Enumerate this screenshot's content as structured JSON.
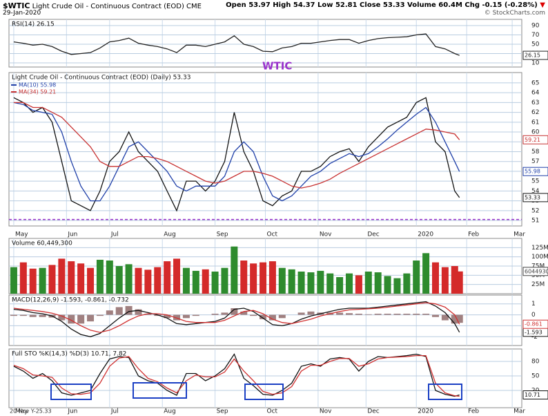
{
  "header": {
    "symbol": "$WTIC",
    "name": "Light Crude Oil - Continuous Contract (EOD)",
    "exchange": "CME",
    "date": "29-Jan-2020",
    "quote": "Open 53.97  High 54.37  Low 52.81  Close 53.33  Volume 60.4M  Chg -0.15 (-0.28%)",
    "credit": "© StockCharts.com"
  },
  "watermark": "WTIC",
  "footer": "20 Nov Y-25.33",
  "x_axis": {
    "xlim": [
      -2,
      212
    ],
    "xticks": [
      {
        "value": 0,
        "label": "May"
      },
      {
        "value": 22,
        "label": "Jun"
      },
      {
        "value": 40,
        "label": "Jul"
      },
      {
        "value": 62,
        "label": "Aug"
      },
      {
        "value": 84,
        "label": "Sep"
      },
      {
        "value": 105,
        "label": "Oct"
      },
      {
        "value": 127,
        "label": "Nov"
      },
      {
        "value": 147,
        "label": "Dec"
      },
      {
        "value": 168,
        "label": "2020"
      },
      {
        "value": 189,
        "label": "Feb"
      },
      {
        "value": 208,
        "label": "Mar"
      }
    ],
    "x": [
      0,
      4,
      8,
      12,
      16,
      20,
      24,
      28,
      32,
      36,
      40,
      44,
      48,
      52,
      56,
      60,
      64,
      68,
      72,
      76,
      80,
      84,
      88,
      92,
      96,
      100,
      104,
      108,
      112,
      116,
      120,
      124,
      128,
      132,
      136,
      140,
      144,
      148,
      152,
      156,
      160,
      164,
      168,
      172,
      176,
      180,
      184,
      186
    ]
  },
  "chart_data": [
    {
      "type": "line",
      "title": "RSI(14) 26.15",
      "ylim": [
        1.1,
        103.3
      ],
      "yticks": [
        90,
        70,
        50,
        30,
        10
      ],
      "grid": true,
      "series": [
        {
          "color": "#222222",
          "tag": true,
          "values": [
            55,
            52,
            48,
            50,
            45,
            35,
            28,
            30,
            32,
            42,
            55,
            58,
            63,
            52,
            48,
            45,
            40,
            32,
            48,
            48,
            45,
            50,
            55,
            68,
            50,
            45,
            35,
            34,
            42,
            45,
            52,
            52,
            55,
            58,
            60,
            60,
            52,
            58,
            62,
            64,
            65,
            66,
            70,
            72,
            45,
            40,
            30,
            26.15
          ]
        }
      ]
    },
    {
      "type": "line",
      "title": "Light Crude Oil - Continuous Contract (EOD) (Daily) 53.33",
      "ylim": [
        50.44,
        66.05
      ],
      "yticks": [
        65,
        64,
        63,
        62,
        61,
        60,
        59,
        58,
        57,
        56,
        55,
        54,
        53,
        52,
        51
      ],
      "grid": true,
      "hlines": [
        {
          "value": 51.1,
          "color": "#9933cc"
        }
      ],
      "series": [
        {
          "color": "#111111",
          "tag": true,
          "values": [
            63.5,
            63,
            62,
            62.5,
            61,
            57,
            53,
            52.5,
            52,
            54,
            57,
            58,
            60,
            58,
            57,
            56,
            54,
            52,
            55,
            55,
            54,
            55,
            57,
            62,
            58,
            56,
            53,
            52.5,
            53.5,
            54,
            56,
            56,
            56.5,
            57.5,
            58,
            58.3,
            57,
            58.5,
            59.5,
            60.5,
            61,
            61.5,
            63,
            63.5,
            59,
            58,
            54,
            53.33
          ]
        },
        {
          "name": "MA(10) 55.98",
          "color": "#1f3fa8",
          "tag": true,
          "values": [
            63,
            62.8,
            62.2,
            62,
            61.8,
            60,
            57,
            54.5,
            53,
            53,
            54.5,
            56.5,
            58.5,
            59,
            58,
            57,
            56,
            54.5,
            54,
            54.5,
            54.5,
            54.5,
            55.5,
            58,
            59,
            58,
            55.5,
            53.5,
            53,
            53.5,
            54.5,
            55.5,
            56,
            56.8,
            57.3,
            57.8,
            57.5,
            57.8,
            58.5,
            59.3,
            60.2,
            61,
            61.8,
            62.5,
            61,
            59,
            57,
            55.98
          ]
        },
        {
          "name": "MA(34) 59.21",
          "color": "#c83232",
          "tag": true,
          "values": [
            63,
            63,
            62.5,
            62.5,
            62,
            61.5,
            60.5,
            59.5,
            58.5,
            57,
            56.5,
            56.5,
            57,
            57.5,
            57.5,
            57.3,
            57,
            56.5,
            56,
            55.5,
            55,
            54.8,
            55,
            55.5,
            56,
            56,
            55.8,
            55.5,
            55,
            54.5,
            54.3,
            54.5,
            54.8,
            55.2,
            55.8,
            56.3,
            56.8,
            57.3,
            57.8,
            58.3,
            58.8,
            59.3,
            59.8,
            60.3,
            60.2,
            60,
            59.8,
            59.21
          ]
        }
      ]
    },
    {
      "type": "bar",
      "title": "Volume 60,449,300",
      "ylim": [
        0,
        150000000
      ],
      "up_color": "#2e8b2e",
      "down_color": "#d42a2a",
      "yticks": [
        {
          "value": 125000000,
          "label": "125M"
        },
        {
          "value": 100000000,
          "label": "100M"
        },
        {
          "value": 75000000,
          "label": "75M"
        },
        {
          "value": 50000000,
          "label": "50M"
        },
        {
          "value": 25000000,
          "label": "25M"
        }
      ],
      "grid": true,
      "series": [
        {
          "color": "#444444",
          "tag": true,
          "values": [
            72000000,
            85000000,
            68000000,
            70000000,
            78000000,
            95000000,
            88000000,
            82000000,
            70000000,
            92000000,
            90000000,
            75000000,
            80000000,
            70000000,
            65000000,
            72000000,
            88000000,
            95000000,
            70000000,
            62000000,
            66000000,
            60000000,
            70000000,
            128000000,
            90000000,
            82000000,
            85000000,
            88000000,
            70000000,
            66000000,
            60000000,
            58000000,
            62000000,
            55000000,
            45000000,
            55000000,
            50000000,
            60000000,
            58000000,
            48000000,
            42000000,
            55000000,
            90000000,
            110000000,
            85000000,
            72000000,
            75000000,
            60449300
          ]
        }
      ]
    },
    {
      "type": "line",
      "title": "MACD(12,26,9) -1.593, -0.861, -0.732",
      "ylim": [
        -2.8,
        1.8
      ],
      "yticks": [
        1,
        0,
        -1,
        -2
      ],
      "grid": true,
      "series": [
        {
          "color": "#a08080",
          "style": "bar",
          "values": [
            -0.1,
            -0.1,
            -0.2,
            -0.2,
            -0.25,
            -0.5,
            -0.8,
            -0.8,
            -0.6,
            -0.1,
            0.4,
            0.7,
            0.8,
            0.5,
            0.1,
            -0.1,
            -0.3,
            -0.5,
            -0.3,
            -0.1,
            0,
            0.1,
            0.2,
            0.6,
            0.3,
            -0.1,
            -0.4,
            -0.5,
            -0.3,
            0,
            0.2,
            0.3,
            0.2,
            0.2,
            0.2,
            0.15,
            0.1,
            0.05,
            0.1,
            0.1,
            0.1,
            0.1,
            0.1,
            0.1,
            -0.2,
            -0.5,
            -0.8,
            -0.732
          ]
        },
        {
          "color": "#111111",
          "tag": true,
          "values": [
            0.5,
            0.4,
            0.2,
            0.1,
            -0.1,
            -0.6,
            -1.3,
            -1.8,
            -2.0,
            -1.7,
            -1.0,
            -0.3,
            0.3,
            0.4,
            0.2,
            0,
            -0.3,
            -0.8,
            -0.9,
            -0.8,
            -0.7,
            -0.6,
            -0.3,
            0.5,
            0.6,
            0.3,
            -0.3,
            -0.9,
            -1.0,
            -0.8,
            -0.4,
            -0.1,
            0.1,
            0.3,
            0.5,
            0.6,
            0.6,
            0.6,
            0.7,
            0.8,
            0.9,
            1.0,
            1.1,
            1.2,
            0.8,
            0.2,
            -0.8,
            -1.593
          ]
        },
        {
          "color": "#d03030",
          "tag": true,
          "values": [
            0.6,
            0.5,
            0.4,
            0.3,
            0.15,
            -0.1,
            -0.5,
            -1.0,
            -1.4,
            -1.6,
            -1.4,
            -1.0,
            -0.5,
            -0.1,
            0.1,
            0.1,
            0,
            -0.3,
            -0.6,
            -0.7,
            -0.7,
            -0.7,
            -0.5,
            -0.1,
            0.3,
            0.4,
            0.1,
            -0.4,
            -0.7,
            -0.8,
            -0.6,
            -0.4,
            -0.1,
            0.1,
            0.3,
            0.45,
            0.5,
            0.55,
            0.6,
            0.7,
            0.8,
            0.9,
            1.0,
            1.1,
            1.0,
            0.7,
            0.0,
            -0.861
          ]
        }
      ]
    },
    {
      "type": "line",
      "title": "Full STO %K(14,3) %D(3) 10.71, 7.82",
      "ylim": [
        -15.7,
        105.7
      ],
      "yticks": [
        80,
        50,
        20
      ],
      "grid": true,
      "series": [
        {
          "color": "#111111",
          "tag": true,
          "values": [
            70,
            60,
            45,
            55,
            40,
            15,
            10,
            15,
            20,
            55,
            85,
            90,
            88,
            50,
            40,
            35,
            20,
            10,
            55,
            55,
            40,
            50,
            65,
            95,
            45,
            30,
            12,
            10,
            20,
            35,
            70,
            75,
            70,
            85,
            88,
            85,
            60,
            80,
            90,
            88,
            90,
            92,
            95,
            90,
            20,
            12,
            8,
            10.71
          ]
        },
        {
          "color": "#d03030",
          "values": [
            72,
            65,
            52,
            50,
            47,
            25,
            13,
            12,
            15,
            35,
            70,
            87,
            90,
            65,
            45,
            38,
            25,
            15,
            40,
            52,
            48,
            48,
            58,
            85,
            60,
            40,
            18,
            12,
            15,
            28,
            60,
            72,
            72,
            80,
            86,
            86,
            70,
            75,
            85,
            88,
            89,
            90,
            92,
            92,
            35,
            15,
            9,
            7.82
          ]
        }
      ]
    }
  ]
}
